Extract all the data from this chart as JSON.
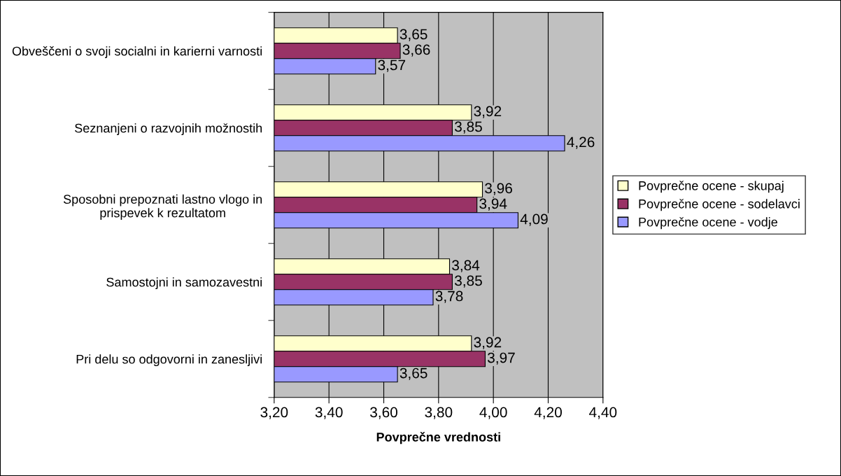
{
  "chart_data": {
    "type": "bar",
    "orientation": "horizontal",
    "xlabel": "Povprečne vrednosti",
    "categories": [
      "Obveščeni o svoji socialni in karierni varnosti",
      "Seznanjeni o razvojnih možnostih",
      "Sposobni prepoznati lastno vlogo in prispevek k rezultatom",
      "Samostojni in samozavestni",
      "Pri delu so odgovorni in zanesljivi"
    ],
    "series": [
      {
        "name": "Povprečne ocene - skupaj",
        "color": "#ffffcc",
        "values": [
          3.65,
          3.92,
          3.96,
          3.84,
          3.92
        ],
        "value_labels": [
          "3,65",
          "3,92",
          "3,96",
          "3,84",
          "3,92"
        ]
      },
      {
        "name": "Povprečne ocene - sodelavci",
        "color": "#993366",
        "values": [
          3.66,
          3.85,
          3.94,
          3.85,
          3.97
        ],
        "value_labels": [
          "3,66",
          "3,85",
          "3,94",
          "3,85",
          "3,97"
        ]
      },
      {
        "name": "Povprečne ocene - vodje",
        "color": "#9999ff",
        "values": [
          3.57,
          4.26,
          4.09,
          3.78,
          3.65
        ],
        "value_labels": [
          "3,57",
          "4,26",
          "4,09",
          "3,78",
          "3,65"
        ]
      }
    ],
    "xlim": [
      3.2,
      4.4
    ],
    "xticks": [
      {
        "value": 3.2,
        "label": "3,20"
      },
      {
        "value": 3.4,
        "label": "3,40"
      },
      {
        "value": 3.6,
        "label": "3,60"
      },
      {
        "value": 3.8,
        "label": "3,80"
      },
      {
        "value": 4.0,
        "label": "4,00"
      },
      {
        "value": 4.2,
        "label": "4,20"
      },
      {
        "value": 4.4,
        "label": "4,40"
      }
    ],
    "grid": "x",
    "legend": "right"
  }
}
